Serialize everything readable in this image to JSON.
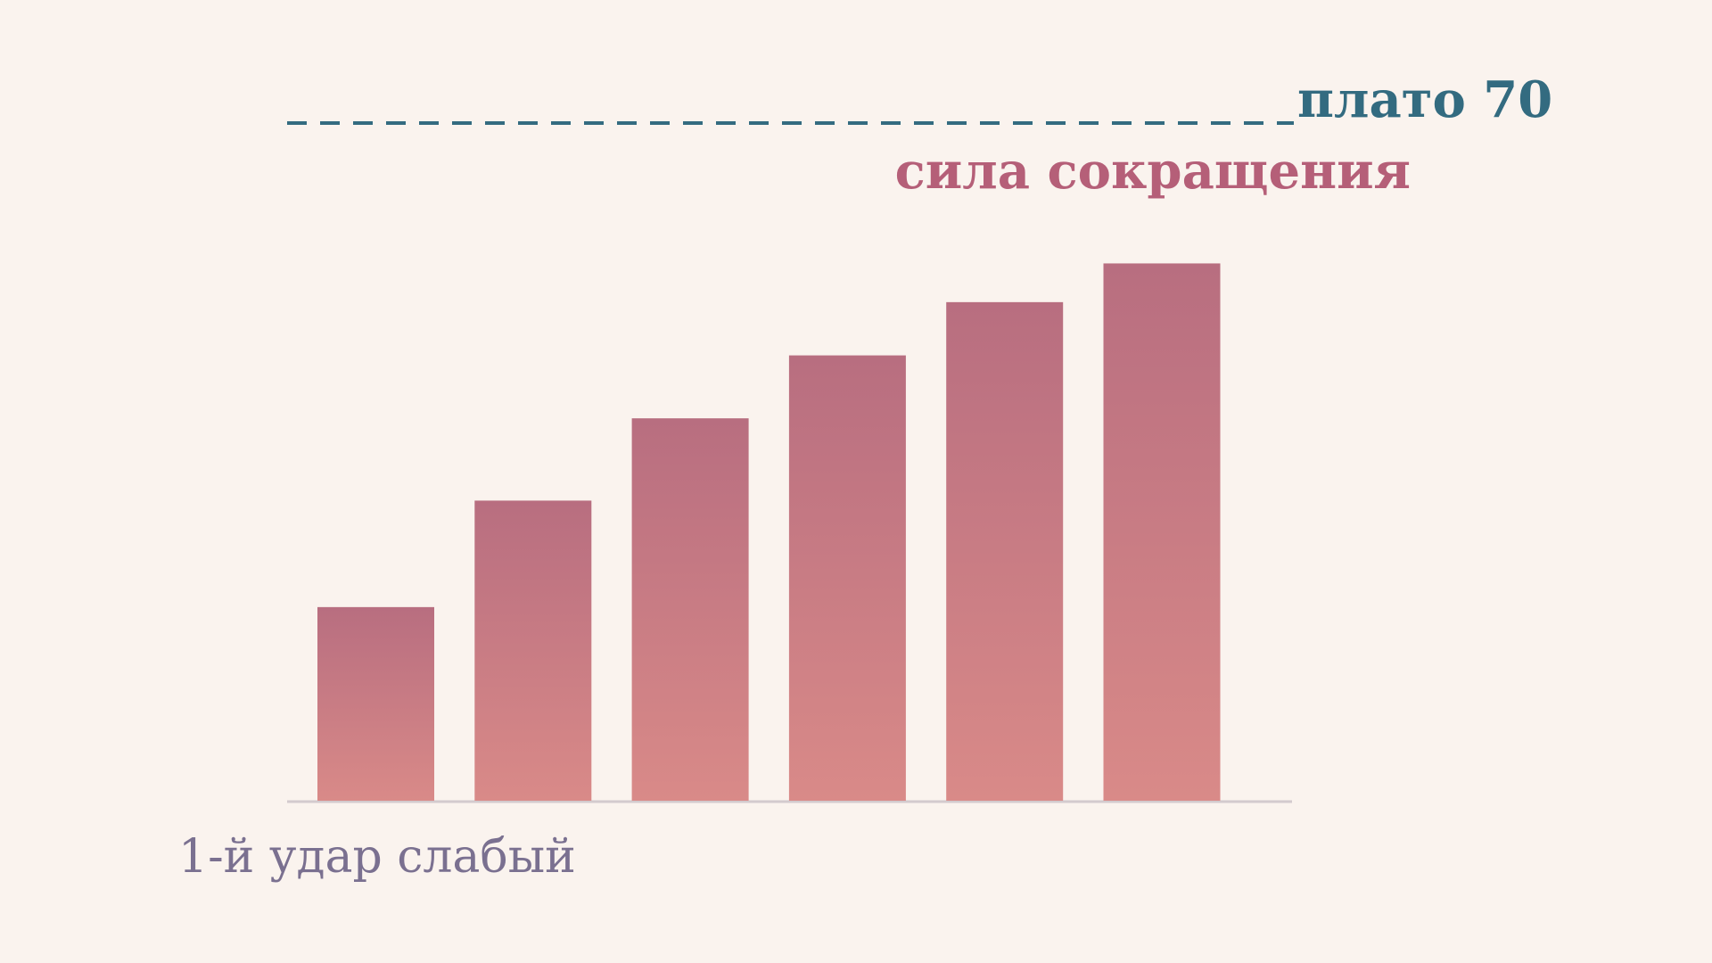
{
  "chart_data": {
    "type": "bar",
    "title": "сила сокращения",
    "title_color": "#b55f78",
    "categories": [
      null,
      null,
      null,
      null,
      null,
      null
    ],
    "values": [
      20,
      31,
      39.5,
      46,
      51.5,
      55.5
    ],
    "gradient": [
      "#b86e80",
      "#d98a88"
    ],
    "ylim": [
      0,
      70
    ],
    "plateau": {
      "value": 70,
      "label": "плато 70"
    },
    "plateau_color": "#336b80",
    "annotation": "1-й удар слабый",
    "annotation_color": "#7a7090"
  }
}
